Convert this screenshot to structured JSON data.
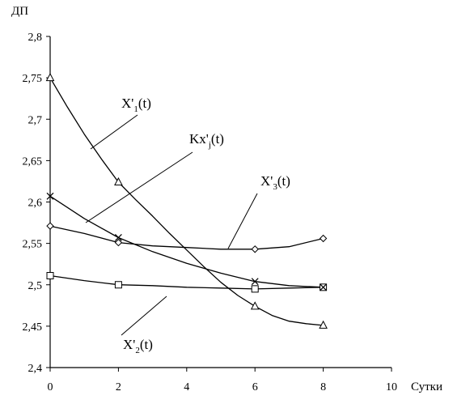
{
  "chart_data": {
    "type": "line",
    "ylabel": "ДП",
    "xlabel": "Сутки",
    "xlim": [
      0,
      10
    ],
    "ylim": [
      2.4,
      2.8
    ],
    "x_ticks": [
      "0",
      "2",
      "4",
      "6",
      "8",
      "10"
    ],
    "y_ticks": [
      "2,4",
      "2,45",
      "2,5",
      "2,55",
      "2,6",
      "2,65",
      "2,7",
      "2,75",
      "2,8"
    ],
    "grid": false,
    "series": [
      {
        "name": "X'1(t)",
        "label_main": "X'",
        "label_sub": "1",
        "label_tail": "(t)",
        "marker": "triangle",
        "x": [
          0,
          2,
          6,
          8
        ],
        "values": [
          2.75,
          2.624,
          2.474,
          2.451
        ],
        "curve_x": [
          0,
          0.5,
          1,
          1.5,
          2,
          2.5,
          3,
          3.5,
          4,
          4.5,
          5,
          5.5,
          6,
          6.5,
          7,
          7.5,
          8
        ],
        "curve_y": [
          2.75,
          2.715,
          2.682,
          2.652,
          2.624,
          2.603,
          2.583,
          2.562,
          2.542,
          2.522,
          2.503,
          2.487,
          2.474,
          2.463,
          2.456,
          2.453,
          2.451
        ]
      },
      {
        "name": "X'2(t)",
        "label_main": "X'",
        "label_sub": "2",
        "label_tail": "(t)",
        "marker": "square",
        "x": [
          0,
          2,
          6,
          8
        ],
        "values": [
          2.511,
          2.5,
          2.495,
          2.497
        ],
        "curve_x": [
          0,
          1,
          2,
          3,
          4,
          5,
          6,
          7,
          8
        ],
        "curve_y": [
          2.511,
          2.505,
          2.5,
          2.499,
          2.497,
          2.496,
          2.495,
          2.496,
          2.497
        ]
      },
      {
        "name": "X'3(t)",
        "label_main": "X'",
        "label_sub": "3",
        "label_tail": "(t)",
        "marker": "diamond",
        "x": [
          0,
          2,
          6,
          8
        ],
        "values": [
          2.571,
          2.551,
          2.543,
          2.556
        ],
        "curve_x": [
          0,
          1,
          2,
          3,
          4,
          5,
          6,
          7,
          8
        ],
        "curve_y": [
          2.571,
          2.562,
          2.551,
          2.547,
          2.545,
          2.543,
          2.543,
          2.546,
          2.556
        ]
      },
      {
        "name": "Kx'j(t)",
        "label_main": "Kx'",
        "label_sub": "j",
        "label_tail": "(t)",
        "marker": "x",
        "x": [
          0,
          2,
          6,
          8
        ],
        "values": [
          2.607,
          2.557,
          2.504,
          2.497
        ],
        "curve_x": [
          0,
          1,
          2,
          3,
          4,
          5,
          6,
          7,
          8
        ],
        "curve_y": [
          2.607,
          2.58,
          2.557,
          2.54,
          2.526,
          2.514,
          2.504,
          2.499,
          2.497
        ]
      }
    ]
  }
}
